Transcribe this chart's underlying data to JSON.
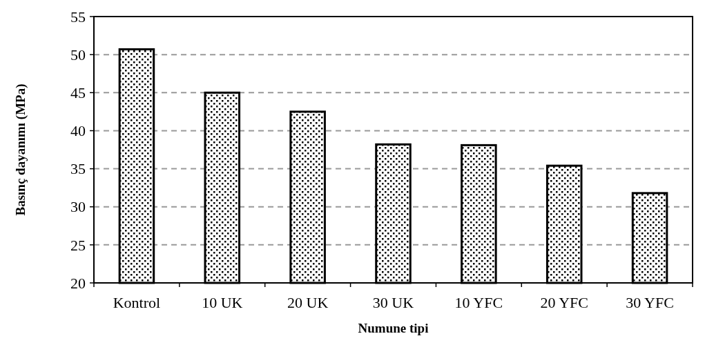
{
  "chart_data": {
    "type": "bar",
    "xlabel": "Numune tipi",
    "ylabel": "Basınç dayanımı (MPa)",
    "categories": [
      "Kontrol",
      "10 UK",
      "20 UK",
      "30 UK",
      "10 YFC",
      "20 YFC",
      "30 YFC"
    ],
    "values": [
      50.7,
      45.0,
      42.5,
      38.2,
      38.1,
      35.4,
      31.8
    ],
    "color": "#000000",
    "ylim": [
      20,
      55
    ],
    "yticks": [
      20,
      25,
      30,
      35,
      40,
      45,
      50,
      55
    ],
    "grid": "y"
  }
}
